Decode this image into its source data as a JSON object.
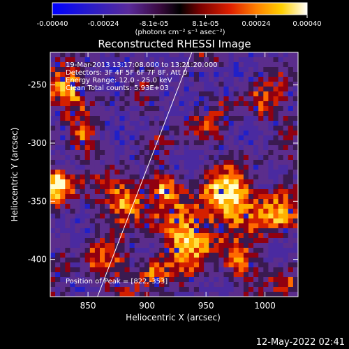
{
  "colorbar": {
    "ticks": [
      "-0.00040",
      "-0.00024",
      "-8.1e-05",
      "8.1e-05",
      "0.00024",
      "0.00040"
    ],
    "tick_values": [
      -0.0004,
      -0.00024,
      -8.1e-05,
      8.1e-05,
      0.00024,
      0.0004
    ],
    "unit_label": "(photons cm⁻² s⁻¹ asec⁻²)",
    "range": [
      -0.0004,
      0.0004
    ]
  },
  "title": "Reconstructed RHESSI Image",
  "annotations": {
    "time_range": "19-Mar-2013 13:17:08.000 to 13:21:20.000",
    "detectors": "Detectors: 3F 4F 5F 6F 7F 8F, Att 0",
    "energy_range": "Energy Range: 12.0 - 25.0 keV",
    "clean": "Clean      Total counts: 5.93E+03",
    "peak": "Position of Peak = [822,-353]"
  },
  "axes": {
    "xlabel": "Heliocentric X (arcsec)",
    "ylabel": "Heliocentric Y (arcsec)",
    "xlim": [
      818,
      1028
    ],
    "ylim": [
      -432,
      -222
    ],
    "xticks": [
      850,
      900,
      950,
      1000
    ],
    "yticks": [
      -250,
      -300,
      -350,
      -400
    ]
  },
  "limb_line": {
    "x1": 858,
    "y1": -432,
    "x2": 938,
    "y2": -222
  },
  "colors": {
    "frame": "#ffffff",
    "limb": "#ffffff"
  },
  "footer": {
    "date": "12-May-2022 02:41"
  }
}
